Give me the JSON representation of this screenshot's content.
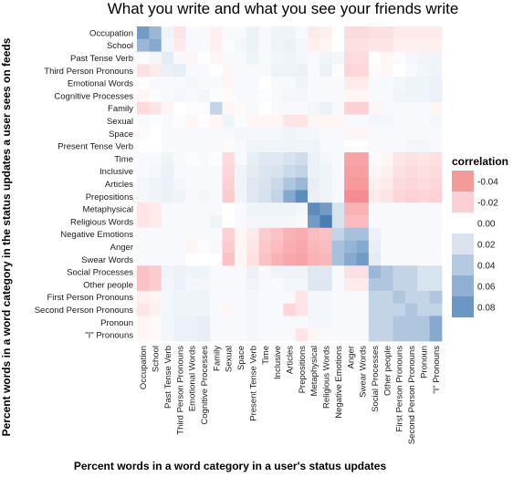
{
  "chart_data": {
    "type": "heatmap",
    "title": "What you write and what you see your friends write",
    "xlabel": "Percent words in a word category in a user's status updates",
    "ylabel": "Percent words in a word category in the status updates a user sees on feeds",
    "categories": [
      "Occupation",
      "School",
      "Past Tense Verb",
      "Third Person Pronouns",
      "Emotional Words",
      "Cognitive Processes",
      "Family",
      "Sexual",
      "Space",
      "Present Tense Verb",
      "Time",
      "Inclusive",
      "Articles",
      "Prepositions",
      "Metaphysical",
      "Religious Words",
      "Negative Emotions",
      "Anger",
      "Swear Words",
      "Social Processes",
      "Other people",
      "First Person Pronouns",
      "Second Person Pronouns",
      "Pronoun",
      "\"I\" Pronouns"
    ],
    "legend": {
      "title": "correlation",
      "placement": "right",
      "entries": [
        "-0.04",
        "-0.02",
        "0.00",
        "0.02",
        "0.04",
        "0.06",
        "0.08"
      ],
      "values": [
        -0.04,
        -0.02,
        0.0,
        0.02,
        0.04,
        0.06,
        0.08
      ],
      "colors": [
        "#f59a9a",
        "#fbd0d4",
        "#ffffff",
        "#dae3ee",
        "#b5c9e0",
        "#8fb0d2",
        "#6a97c3"
      ]
    },
    "colors": {
      "negative": "#f57f85",
      "zero": "#ffffff",
      "positive": "#4a7fb5",
      "panel": "#ebebeb"
    },
    "values": [
      [
        0.07,
        0.05,
        0.008,
        -0.01,
        0.004,
        0.004,
        -0.006,
        0.004,
        0.004,
        0.01,
        0.004,
        0.008,
        0.008,
        0.004,
        -0.008,
        -0.006,
        0.0,
        -0.014,
        -0.014,
        -0.012,
        -0.012,
        -0.008,
        -0.008,
        -0.008,
        -0.008
      ],
      [
        0.05,
        0.06,
        0.006,
        -0.008,
        0.004,
        0.004,
        -0.006,
        0.002,
        0.006,
        0.01,
        0.004,
        0.008,
        0.01,
        0.006,
        -0.006,
        -0.004,
        0.0,
        -0.012,
        -0.012,
        -0.01,
        -0.01,
        -0.006,
        -0.006,
        -0.006,
        -0.006
      ],
      [
        0.002,
        0.006,
        0.014,
        0.004,
        -0.004,
        0.0,
        -0.004,
        0.004,
        0.004,
        0.008,
        0.004,
        0.006,
        0.008,
        0.006,
        0.004,
        0.008,
        0.006,
        -0.014,
        -0.014,
        0.0,
        -0.004,
        0.002,
        0.006,
        0.008,
        0.008
      ],
      [
        -0.012,
        -0.008,
        0.01,
        0.012,
        0.004,
        0.004,
        0.0,
        -0.004,
        0.004,
        0.004,
        0.004,
        0.008,
        0.008,
        0.01,
        0.004,
        0.01,
        0.002,
        -0.016,
        -0.016,
        -0.002,
        -0.004,
        0.0,
        0.004,
        0.006,
        0.008
      ],
      [
        0.0,
        0.004,
        0.004,
        0.004,
        0.006,
        0.004,
        0.004,
        -0.004,
        0.004,
        0.004,
        0.0,
        0.004,
        0.004,
        0.008,
        0.004,
        0.004,
        0.004,
        -0.008,
        -0.008,
        0.004,
        0.004,
        0.006,
        0.008,
        0.008,
        0.01
      ],
      [
        -0.004,
        0.002,
        0.004,
        0.006,
        0.004,
        0.006,
        0.002,
        -0.002,
        0.004,
        0.004,
        0.002,
        0.004,
        0.006,
        0.006,
        0.004,
        0.004,
        0.004,
        -0.004,
        -0.004,
        0.004,
        0.004,
        0.008,
        0.008,
        0.008,
        0.01
      ],
      [
        -0.014,
        -0.01,
        -0.004,
        0.0,
        0.002,
        0.002,
        0.03,
        -0.004,
        -0.002,
        0.004,
        0.0,
        0.004,
        0.004,
        0.004,
        0.006,
        0.01,
        0.004,
        -0.018,
        -0.018,
        -0.004,
        0.004,
        0.004,
        0.004,
        0.004,
        -0.004
      ],
      [
        0.004,
        0.002,
        0.004,
        0.002,
        -0.004,
        0.0,
        -0.004,
        0.008,
        0.002,
        -0.004,
        -0.004,
        -0.004,
        -0.01,
        -0.01,
        -0.004,
        -0.004,
        -0.004,
        0.004,
        0.004,
        0.006,
        0.006,
        0.004,
        0.004,
        0.004,
        0.006
      ],
      [
        -0.002,
        0.0,
        0.004,
        0.004,
        0.004,
        0.004,
        0.004,
        0.004,
        0.006,
        0.006,
        0.006,
        0.006,
        0.008,
        0.006,
        0.006,
        0.004,
        0.004,
        -0.004,
        -0.004,
        0.004,
        0.004,
        0.004,
        0.004,
        0.004,
        0.004
      ],
      [
        0.0,
        0.0,
        0.004,
        0.004,
        0.004,
        0.004,
        0.004,
        -0.002,
        0.004,
        0.008,
        0.008,
        0.008,
        0.008,
        0.008,
        0.008,
        0.004,
        0.004,
        0.0,
        0.0,
        0.004,
        0.004,
        0.004,
        0.006,
        0.006,
        0.004
      ],
      [
        0.004,
        0.004,
        0.008,
        0.004,
        0.002,
        0.004,
        0.002,
        -0.014,
        0.004,
        0.012,
        0.016,
        0.016,
        0.02,
        0.024,
        0.01,
        0.006,
        0.004,
        -0.036,
        -0.036,
        -0.002,
        -0.004,
        -0.01,
        -0.012,
        -0.01,
        -0.012
      ],
      [
        0.004,
        0.006,
        0.01,
        0.004,
        0.004,
        0.004,
        0.004,
        -0.016,
        0.008,
        0.014,
        0.018,
        0.02,
        0.026,
        0.03,
        0.01,
        0.008,
        0.004,
        -0.038,
        -0.038,
        -0.004,
        -0.006,
        -0.012,
        -0.014,
        -0.012,
        -0.014
      ],
      [
        0.006,
        0.008,
        0.01,
        0.006,
        0.004,
        0.004,
        0.004,
        -0.018,
        0.008,
        0.016,
        0.02,
        0.026,
        0.04,
        0.05,
        0.012,
        0.008,
        0.004,
        -0.04,
        -0.04,
        -0.006,
        -0.008,
        -0.014,
        -0.016,
        -0.014,
        -0.016
      ],
      [
        0.006,
        0.008,
        0.01,
        0.008,
        0.004,
        0.006,
        0.004,
        -0.02,
        0.008,
        0.016,
        0.022,
        0.03,
        0.06,
        0.08,
        0.01,
        0.008,
        0.004,
        -0.045,
        -0.045,
        -0.008,
        -0.01,
        -0.016,
        -0.018,
        -0.016,
        -0.018
      ],
      [
        -0.01,
        -0.008,
        0.004,
        0.004,
        0.004,
        0.004,
        0.004,
        0.0,
        0.004,
        0.008,
        0.008,
        0.008,
        0.008,
        0.006,
        0.08,
        0.07,
        0.02,
        -0.03,
        -0.03,
        0.004,
        0.004,
        0.004,
        0.004,
        0.004,
        0.004
      ],
      [
        -0.01,
        -0.008,
        0.004,
        0.004,
        0.004,
        0.004,
        0.008,
        0.0,
        0.004,
        0.006,
        0.006,
        0.006,
        0.006,
        0.004,
        0.07,
        0.09,
        0.02,
        -0.026,
        -0.026,
        0.004,
        0.004,
        0.004,
        0.004,
        0.004,
        0.004
      ],
      [
        0.004,
        0.004,
        0.004,
        0.004,
        0.004,
        0.004,
        0.004,
        -0.018,
        -0.004,
        -0.008,
        -0.02,
        -0.024,
        -0.03,
        -0.032,
        -0.026,
        -0.024,
        0.03,
        0.044,
        0.044,
        0.01,
        0.004,
        0.004,
        0.004,
        0.004,
        0.004
      ],
      [
        0.004,
        0.004,
        0.004,
        0.004,
        -0.004,
        0.002,
        0.004,
        -0.02,
        -0.004,
        -0.01,
        -0.022,
        -0.026,
        -0.032,
        -0.034,
        -0.028,
        -0.026,
        0.044,
        0.052,
        0.06,
        0.012,
        0.004,
        0.004,
        0.004,
        0.004,
        0.004
      ],
      [
        0.004,
        0.004,
        0.004,
        0.004,
        0.0,
        0.0,
        0.0,
        -0.024,
        -0.004,
        -0.012,
        -0.024,
        -0.03,
        -0.034,
        -0.036,
        -0.03,
        -0.028,
        0.044,
        0.06,
        0.07,
        0.014,
        0.004,
        0.004,
        0.004,
        0.004,
        0.004
      ],
      [
        -0.024,
        -0.02,
        0.008,
        0.01,
        0.008,
        0.008,
        0.004,
        0.004,
        0.004,
        0.01,
        0.004,
        0.008,
        0.008,
        0.008,
        0.016,
        0.016,
        0.004,
        -0.012,
        -0.012,
        0.05,
        0.04,
        0.03,
        0.03,
        0.02,
        0.02
      ],
      [
        -0.024,
        -0.02,
        0.006,
        0.01,
        0.006,
        0.006,
        0.004,
        0.004,
        0.004,
        0.008,
        0.004,
        0.004,
        0.006,
        0.006,
        0.016,
        0.016,
        0.004,
        -0.008,
        -0.008,
        0.04,
        0.04,
        0.03,
        0.03,
        0.02,
        0.02
      ],
      [
        -0.006,
        -0.004,
        0.006,
        0.008,
        0.008,
        0.008,
        0.004,
        0.004,
        0.004,
        0.006,
        0.004,
        0.004,
        0.004,
        -0.01,
        0.006,
        0.006,
        0.004,
        0.004,
        0.004,
        0.03,
        0.03,
        0.04,
        0.03,
        0.03,
        0.04
      ],
      [
        -0.01,
        -0.006,
        0.006,
        0.008,
        0.008,
        0.008,
        0.004,
        -0.004,
        0.004,
        0.006,
        0.004,
        0.004,
        -0.016,
        -0.01,
        0.006,
        0.006,
        0.004,
        0.004,
        0.004,
        0.03,
        0.03,
        0.03,
        0.04,
        0.03,
        0.03
      ],
      [
        -0.004,
        -0.002,
        0.006,
        0.01,
        0.01,
        0.012,
        0.004,
        0.004,
        0.004,
        0.006,
        0.004,
        0.004,
        0.004,
        0.004,
        0.006,
        0.006,
        0.004,
        0.004,
        0.004,
        0.03,
        0.03,
        0.04,
        0.04,
        0.04,
        0.06
      ],
      [
        -0.004,
        -0.002,
        0.006,
        0.01,
        0.01,
        0.012,
        0.004,
        0.004,
        0.004,
        0.006,
        0.004,
        0.004,
        0.004,
        -0.01,
        -0.004,
        0.004,
        0.004,
        0.004,
        0.004,
        0.03,
        0.03,
        0.04,
        0.04,
        0.04,
        0.06
      ]
    ]
  }
}
